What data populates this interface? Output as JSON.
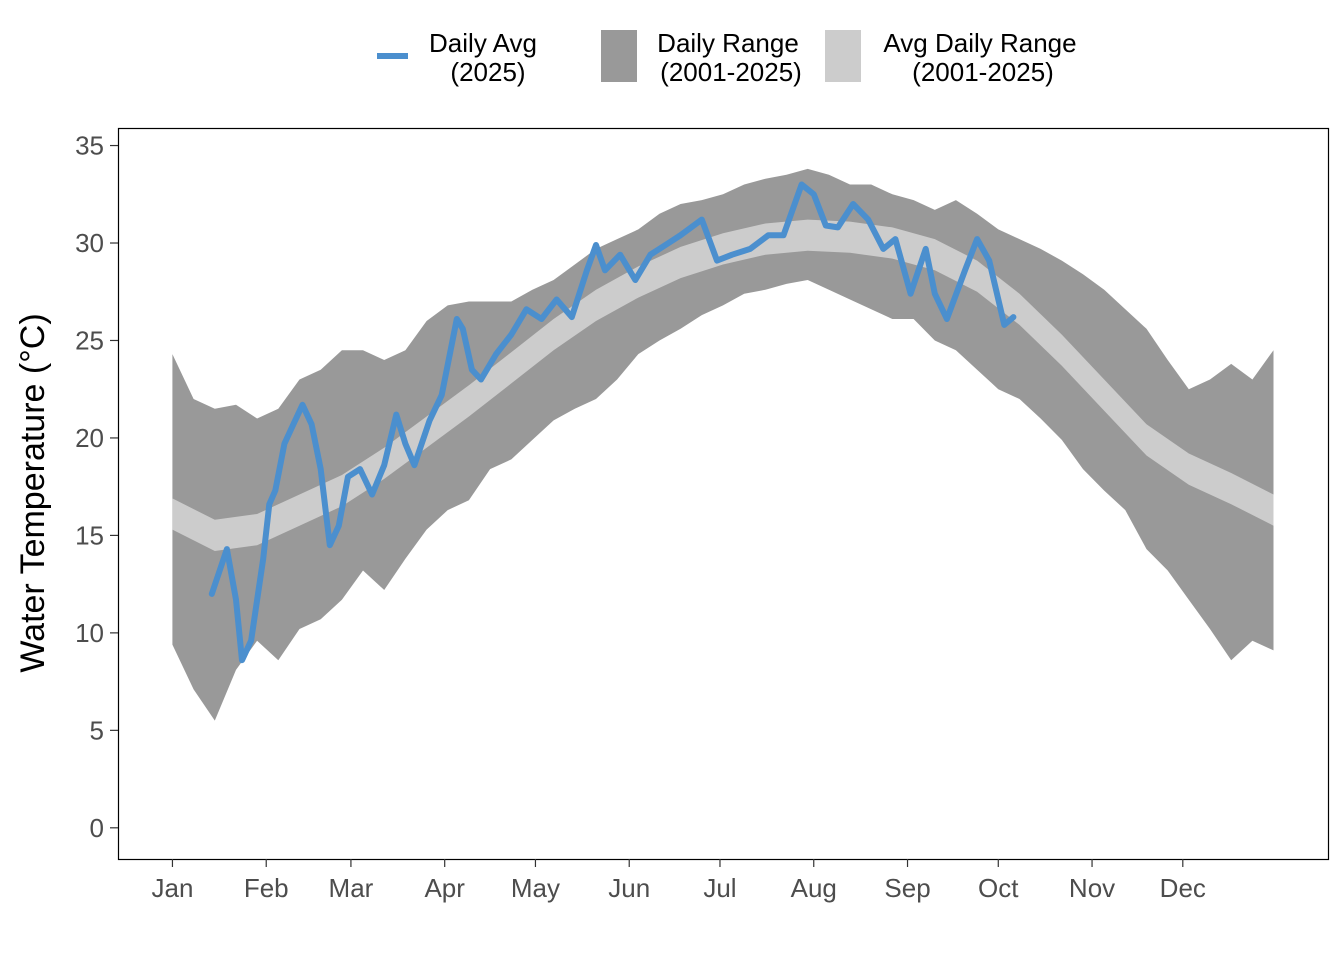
{
  "chart_data": {
    "type": "area",
    "title": "",
    "xlabel": "",
    "ylabel": "Water Temperature (°C)",
    "ylim": [
      -1.6,
      35.9
    ],
    "xlim": [
      "2024-12-14",
      "2026-01-18"
    ],
    "grid": false,
    "legend_placement": "top",
    "x_ticks": [
      {
        "date": "2025-01-01",
        "label": "Jan"
      },
      {
        "date": "2025-02-01",
        "label": "Feb"
      },
      {
        "date": "2025-03-01",
        "label": "Mar"
      },
      {
        "date": "2025-04-01",
        "label": "Apr"
      },
      {
        "date": "2025-05-01",
        "label": "May"
      },
      {
        "date": "2025-06-01",
        "label": "Jun"
      },
      {
        "date": "2025-07-01",
        "label": "Jul"
      },
      {
        "date": "2025-08-01",
        "label": "Aug"
      },
      {
        "date": "2025-09-01",
        "label": "Sep"
      },
      {
        "date": "2025-10-01",
        "label": "Oct"
      },
      {
        "date": "2025-11-01",
        "label": "Nov"
      },
      {
        "date": "2025-12-01",
        "label": "Dec"
      }
    ],
    "y_ticks": [
      0,
      5,
      10,
      15,
      20,
      25,
      30,
      35
    ],
    "legend": [
      {
        "key": "daily_avg",
        "line1": "Daily Avg",
        "line2": "(2025)",
        "color": "#4b8fce",
        "kind": "line"
      },
      {
        "key": "daily_range",
        "line1": "Daily Range",
        "line2": "(2001-2025)",
        "color": "#999999",
        "kind": "fill"
      },
      {
        "key": "avg_range",
        "line1": "Avg Daily Range",
        "line2": "(2001-2025)",
        "color": "#cccccc",
        "kind": "fill"
      }
    ],
    "daily_range": {
      "x": [
        "2025-01-01",
        "2025-01-08",
        "2025-01-15",
        "2025-01-22",
        "2025-01-29",
        "2025-02-05",
        "2025-02-12",
        "2025-02-19",
        "2025-02-26",
        "2025-03-05",
        "2025-03-12",
        "2025-03-19",
        "2025-03-26",
        "2025-04-02",
        "2025-04-09",
        "2025-04-16",
        "2025-04-23",
        "2025-04-30",
        "2025-05-07",
        "2025-05-14",
        "2025-05-21",
        "2025-05-28",
        "2025-06-04",
        "2025-06-11",
        "2025-06-18",
        "2025-06-25",
        "2025-07-02",
        "2025-07-09",
        "2025-07-16",
        "2025-07-23",
        "2025-07-30",
        "2025-08-06",
        "2025-08-13",
        "2025-08-20",
        "2025-08-27",
        "2025-09-03",
        "2025-09-10",
        "2025-09-17",
        "2025-09-24",
        "2025-10-01",
        "2025-10-08",
        "2025-10-15",
        "2025-10-22",
        "2025-10-29",
        "2025-11-05",
        "2025-11-12",
        "2025-11-19",
        "2025-11-26",
        "2025-12-03",
        "2025-12-10",
        "2025-12-17",
        "2025-12-24",
        "2025-12-31"
      ],
      "upper": [
        24.3,
        22.0,
        21.5,
        21.7,
        21.0,
        21.5,
        23.0,
        23.5,
        24.5,
        24.5,
        24.0,
        24.5,
        26.0,
        26.8,
        27.0,
        27.0,
        27.0,
        27.6,
        28.1,
        28.9,
        29.7,
        30.2,
        30.7,
        31.5,
        32.0,
        32.2,
        32.5,
        33.0,
        33.3,
        33.5,
        33.8,
        33.5,
        33.0,
        33.0,
        32.5,
        32.2,
        31.7,
        32.2,
        31.5,
        30.7,
        30.2,
        29.7,
        29.1,
        28.4,
        27.6,
        26.6,
        25.6,
        24.0,
        22.5,
        23.0,
        23.8,
        23.0,
        24.5
      ],
      "lower": [
        9.4,
        7.1,
        5.5,
        8.1,
        9.6,
        8.6,
        10.2,
        10.7,
        11.7,
        13.2,
        12.2,
        13.8,
        15.3,
        16.3,
        16.8,
        18.4,
        18.9,
        19.9,
        20.9,
        21.5,
        22.0,
        23.0,
        24.3,
        25.0,
        25.6,
        26.3,
        26.8,
        27.4,
        27.6,
        27.9,
        28.1,
        27.6,
        27.1,
        26.6,
        26.1,
        26.1,
        25.0,
        24.5,
        23.5,
        22.5,
        22.0,
        21.0,
        19.9,
        18.4,
        17.3,
        16.3,
        14.3,
        13.2,
        11.7,
        10.2,
        8.6,
        9.6,
        9.1
      ]
    },
    "avg_range": {
      "x": [
        "2025-01-01",
        "2025-01-15",
        "2025-01-29",
        "2025-02-12",
        "2025-02-26",
        "2025-03-12",
        "2025-03-26",
        "2025-04-09",
        "2025-04-23",
        "2025-05-07",
        "2025-05-21",
        "2025-06-04",
        "2025-06-18",
        "2025-07-02",
        "2025-07-16",
        "2025-07-30",
        "2025-08-13",
        "2025-08-27",
        "2025-09-10",
        "2025-09-24",
        "2025-10-08",
        "2025-10-22",
        "2025-11-05",
        "2025-11-19",
        "2025-12-03",
        "2025-12-17",
        "2025-12-31"
      ],
      "lower": [
        15.3,
        14.2,
        14.5,
        15.5,
        16.5,
        17.9,
        19.5,
        21.1,
        22.8,
        24.5,
        26.0,
        27.2,
        28.2,
        28.9,
        29.4,
        29.6,
        29.5,
        29.2,
        28.6,
        27.5,
        25.8,
        23.7,
        21.4,
        19.1,
        17.6,
        16.6,
        15.5
      ],
      "upper": [
        16.9,
        15.8,
        16.1,
        17.1,
        18.1,
        19.5,
        21.1,
        22.7,
        24.4,
        26.1,
        27.6,
        28.8,
        29.8,
        30.5,
        31.0,
        31.2,
        31.1,
        30.8,
        30.2,
        29.1,
        27.4,
        25.3,
        23.0,
        20.7,
        19.2,
        18.2,
        17.1
      ]
    },
    "daily_avg": {
      "x": [
        "2025-01-14",
        "2025-01-19",
        "2025-01-22",
        "2025-01-24",
        "2025-01-27",
        "2025-01-31",
        "2025-02-02",
        "2025-02-04",
        "2025-02-07",
        "2025-02-10",
        "2025-02-13",
        "2025-02-16",
        "2025-02-19",
        "2025-02-22",
        "2025-02-25",
        "2025-02-28",
        "2025-03-04",
        "2025-03-08",
        "2025-03-12",
        "2025-03-16",
        "2025-03-19",
        "2025-03-22",
        "2025-03-27",
        "2025-03-31",
        "2025-04-05",
        "2025-04-07",
        "2025-04-10",
        "2025-04-13",
        "2025-04-18",
        "2025-04-23",
        "2025-04-28",
        "2025-05-03",
        "2025-05-08",
        "2025-05-13",
        "2025-05-18",
        "2025-05-21",
        "2025-05-24",
        "2025-05-29",
        "2025-06-03",
        "2025-06-08",
        "2025-06-13",
        "2025-06-18",
        "2025-06-25",
        "2025-06-30",
        "2025-07-05",
        "2025-07-11",
        "2025-07-17",
        "2025-07-22",
        "2025-07-28",
        "2025-08-01",
        "2025-08-05",
        "2025-08-09",
        "2025-08-14",
        "2025-08-19",
        "2025-08-24",
        "2025-08-28",
        "2025-09-02",
        "2025-09-07",
        "2025-09-10",
        "2025-09-14",
        "2025-09-20",
        "2025-09-24",
        "2025-09-28",
        "2025-10-03",
        "2025-10-06"
      ],
      "y": [
        12.0,
        14.3,
        11.7,
        8.6,
        9.6,
        13.8,
        16.6,
        17.3,
        19.7,
        20.7,
        21.7,
        20.7,
        18.4,
        14.5,
        15.5,
        18.0,
        18.4,
        17.1,
        18.6,
        21.2,
        19.7,
        18.6,
        20.9,
        22.2,
        26.1,
        25.6,
        23.5,
        23.0,
        24.3,
        25.3,
        26.6,
        26.1,
        27.1,
        26.2,
        28.6,
        29.9,
        28.6,
        29.4,
        28.1,
        29.4,
        29.9,
        30.4,
        31.2,
        29.1,
        29.4,
        29.7,
        30.4,
        30.4,
        33.0,
        32.5,
        30.9,
        30.8,
        32.0,
        31.2,
        29.7,
        30.2,
        27.4,
        29.7,
        27.4,
        26.1,
        28.6,
        30.2,
        29.1,
        25.8,
        26.2
      ]
    }
  }
}
